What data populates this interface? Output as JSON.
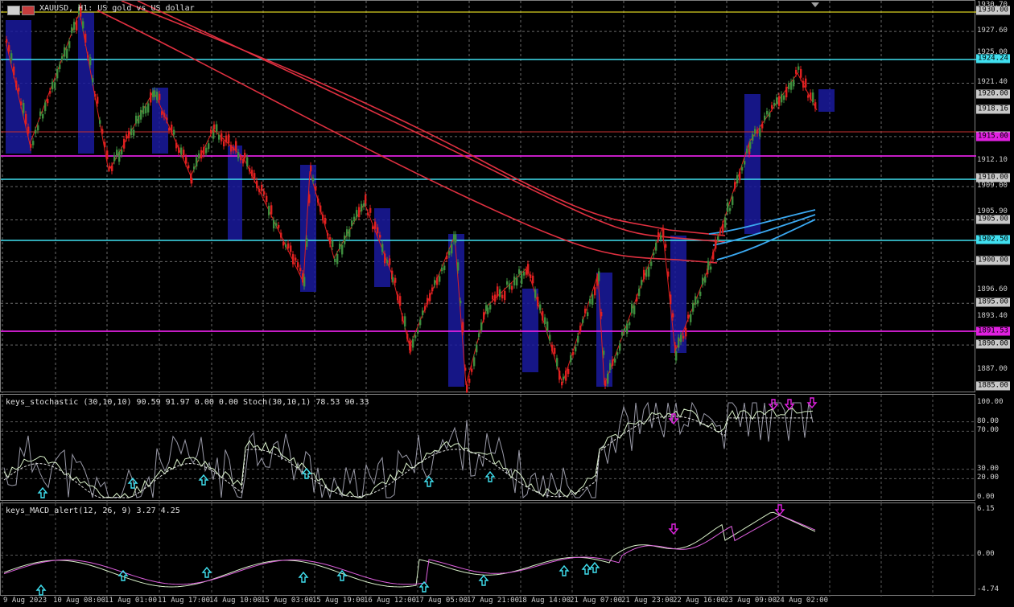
{
  "title": "XAUUSD, H1: US gold vs US dollar",
  "stoch_title": "keys_stochastic (30,10,10) 90.59 91.97 0.00 0.00 Stoch(30,10,1) 78.53 90.33",
  "macd_title": "keys_MACD_alert(12, 26, 9) 3.27 4.25",
  "colors": {
    "bull": "#3e8e3e",
    "bear": "#e02020",
    "box": "#1a1a9e",
    "cyan_line": "#40e0f0",
    "magenta_line": "#e020e0",
    "yellow_line": "#d8d020",
    "ma_red": "#e03040",
    "ma_blue": "#3aa8f0"
  },
  "price_ticks": [
    "1930.70",
    "1927.60",
    "1925.00",
    "1921.40",
    "1920.00",
    "1918.16",
    "1915.00",
    "1912.10",
    "1910.00",
    "1909.00",
    "1905.90",
    "1905.00",
    "1902.50",
    "1900.00",
    "1896.60",
    "1895.00",
    "1893.40",
    "1891.53",
    "1890.00",
    "1887.00",
    "1885.00"
  ],
  "price_tags": [
    {
      "label": "1930.00",
      "bg": "#c8c8c8",
      "fg": "#000"
    },
    {
      "label": "1924.24",
      "bg": "#40e0f0",
      "fg": "#000"
    },
    {
      "label": "1920.00",
      "bg": "#c8c8c8",
      "fg": "#000"
    },
    {
      "label": "1918.16",
      "bg": "#c8c8c8",
      "fg": "#000"
    },
    {
      "label": "1915.00",
      "bg": "#c8c8c8",
      "fg": "#000"
    },
    {
      "label": "1915.00",
      "bg": "#e020e0",
      "fg": "#000"
    },
    {
      "label": "1910.00",
      "bg": "#c8c8c8",
      "fg": "#000"
    },
    {
      "label": "1905.00",
      "bg": "#c8c8c8",
      "fg": "#000"
    },
    {
      "label": "1902.50",
      "bg": "#40e0f0",
      "fg": "#000"
    },
    {
      "label": "1900.00",
      "bg": "#c8c8c8",
      "fg": "#000"
    },
    {
      "label": "1895.00",
      "bg": "#c8c8c8",
      "fg": "#000"
    },
    {
      "label": "1891.53",
      "bg": "#e020e0",
      "fg": "#000"
    },
    {
      "label": "1890.00",
      "bg": "#c8c8c8",
      "fg": "#000"
    },
    {
      "label": "1885.00",
      "bg": "#c8c8c8",
      "fg": "#000"
    }
  ],
  "stoch_ticks": [
    "100.00",
    "80.00",
    "70.00",
    "30.00",
    "20.00",
    "0.00"
  ],
  "macd_ticks": [
    "6.15",
    "0.00",
    "-4.74"
  ],
  "time_labels": [
    "9 Aug 2023",
    "10 Aug 08:00",
    "11 Aug 01:00",
    "11 Aug 17:00",
    "14 Aug 10:00",
    "15 Aug 03:00",
    "15 Aug 19:00",
    "16 Aug 12:00",
    "17 Aug 05:00",
    "17 Aug 21:00",
    "18 Aug 14:00",
    "21 Aug 07:00",
    "21 Aug 23:00",
    "22 Aug 16:00",
    "23 Aug 09:00",
    "24 Aug 02:00"
  ]
}
